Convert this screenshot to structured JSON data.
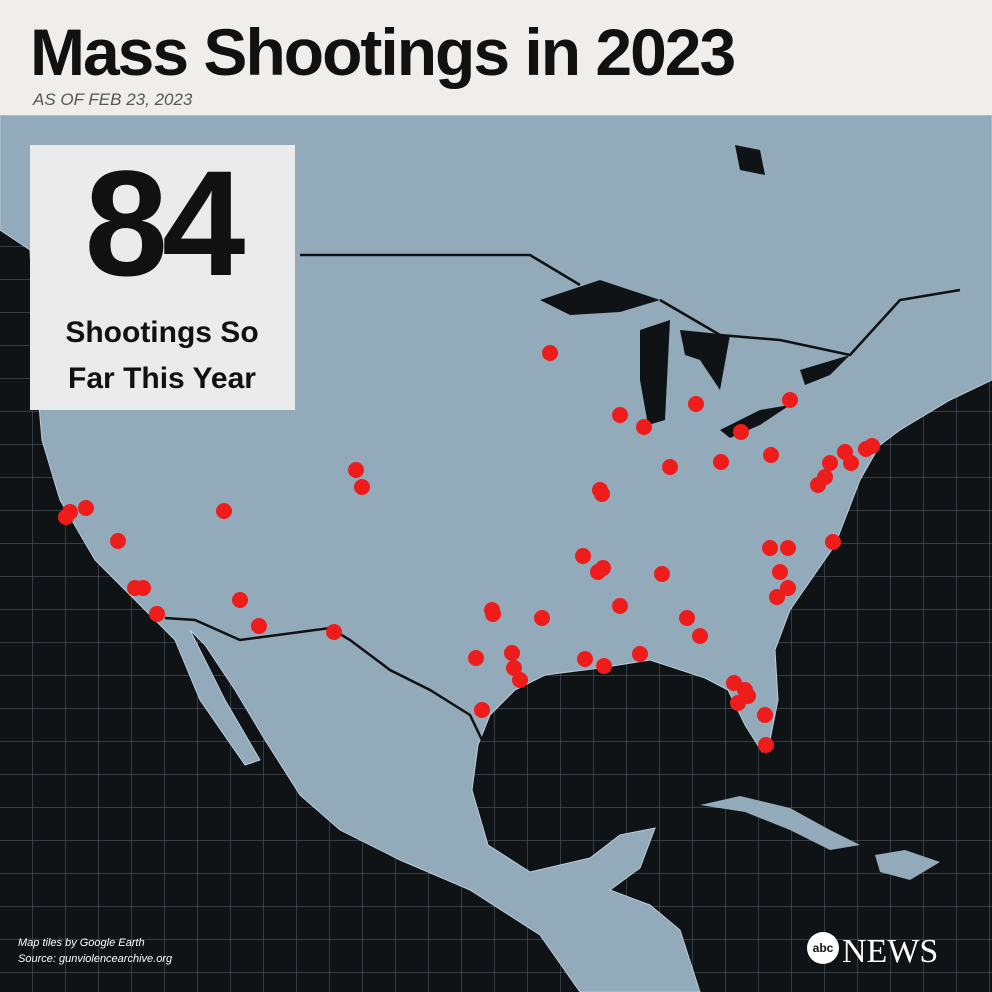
{
  "header": {
    "title": "Mass Shootings in 2023",
    "subtitle": "AS OF FEB 23, 2023"
  },
  "callout": {
    "count": 84,
    "lines": [
      "Shootings So",
      "Far This Year"
    ]
  },
  "credits": [
    "Map tiles by Google Earth",
    "Source: gunviolencearchive.org"
  ],
  "logo": {
    "mark": "abc",
    "word": "NEWS"
  }
}
